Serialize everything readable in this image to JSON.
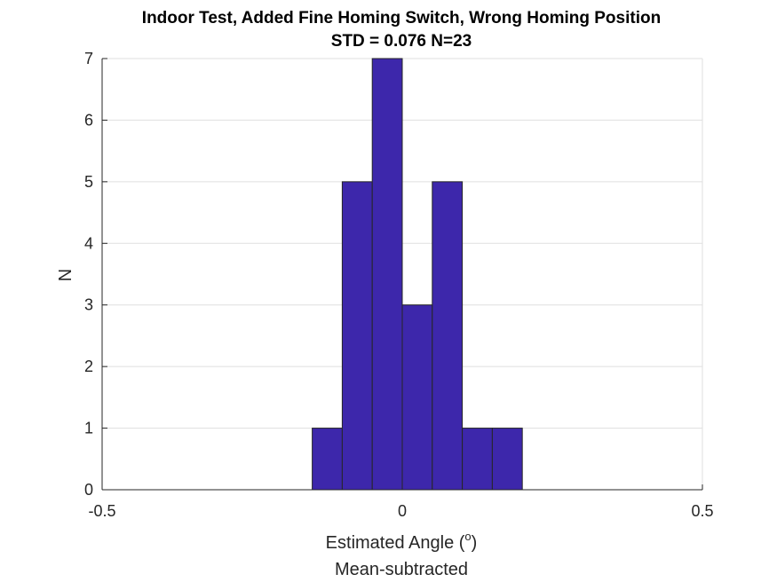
{
  "chart_data": {
    "type": "bar",
    "title": "Indoor Test, Added Fine Homing Switch, Wrong Homing Position",
    "subtitle": "STD = 0.076 N=23",
    "xlabel": "Estimated Angle (",
    "xlabel_sup": "o",
    "xlabel_suffix": ")",
    "xlabel_line2": "Mean-subtracted",
    "ylabel": "N",
    "xlim": [
      -0.5,
      0.5
    ],
    "ylim": [
      0,
      7
    ],
    "xticks": [
      -0.5,
      0,
      0.5
    ],
    "xtick_labels": [
      "-0.5",
      "0",
      "0.5"
    ],
    "yticks": [
      0,
      1,
      2,
      3,
      4,
      5,
      6,
      7
    ],
    "ytick_labels": [
      "0",
      "1",
      "2",
      "3",
      "4",
      "5",
      "6",
      "7"
    ],
    "grid": true,
    "bin_edges": [
      -0.15,
      -0.1,
      -0.05,
      0,
      0.05,
      0.1,
      0.15,
      0.2
    ],
    "counts": [
      1,
      5,
      7,
      3,
      5,
      1,
      1
    ],
    "bar_color": "#3d27ab"
  }
}
